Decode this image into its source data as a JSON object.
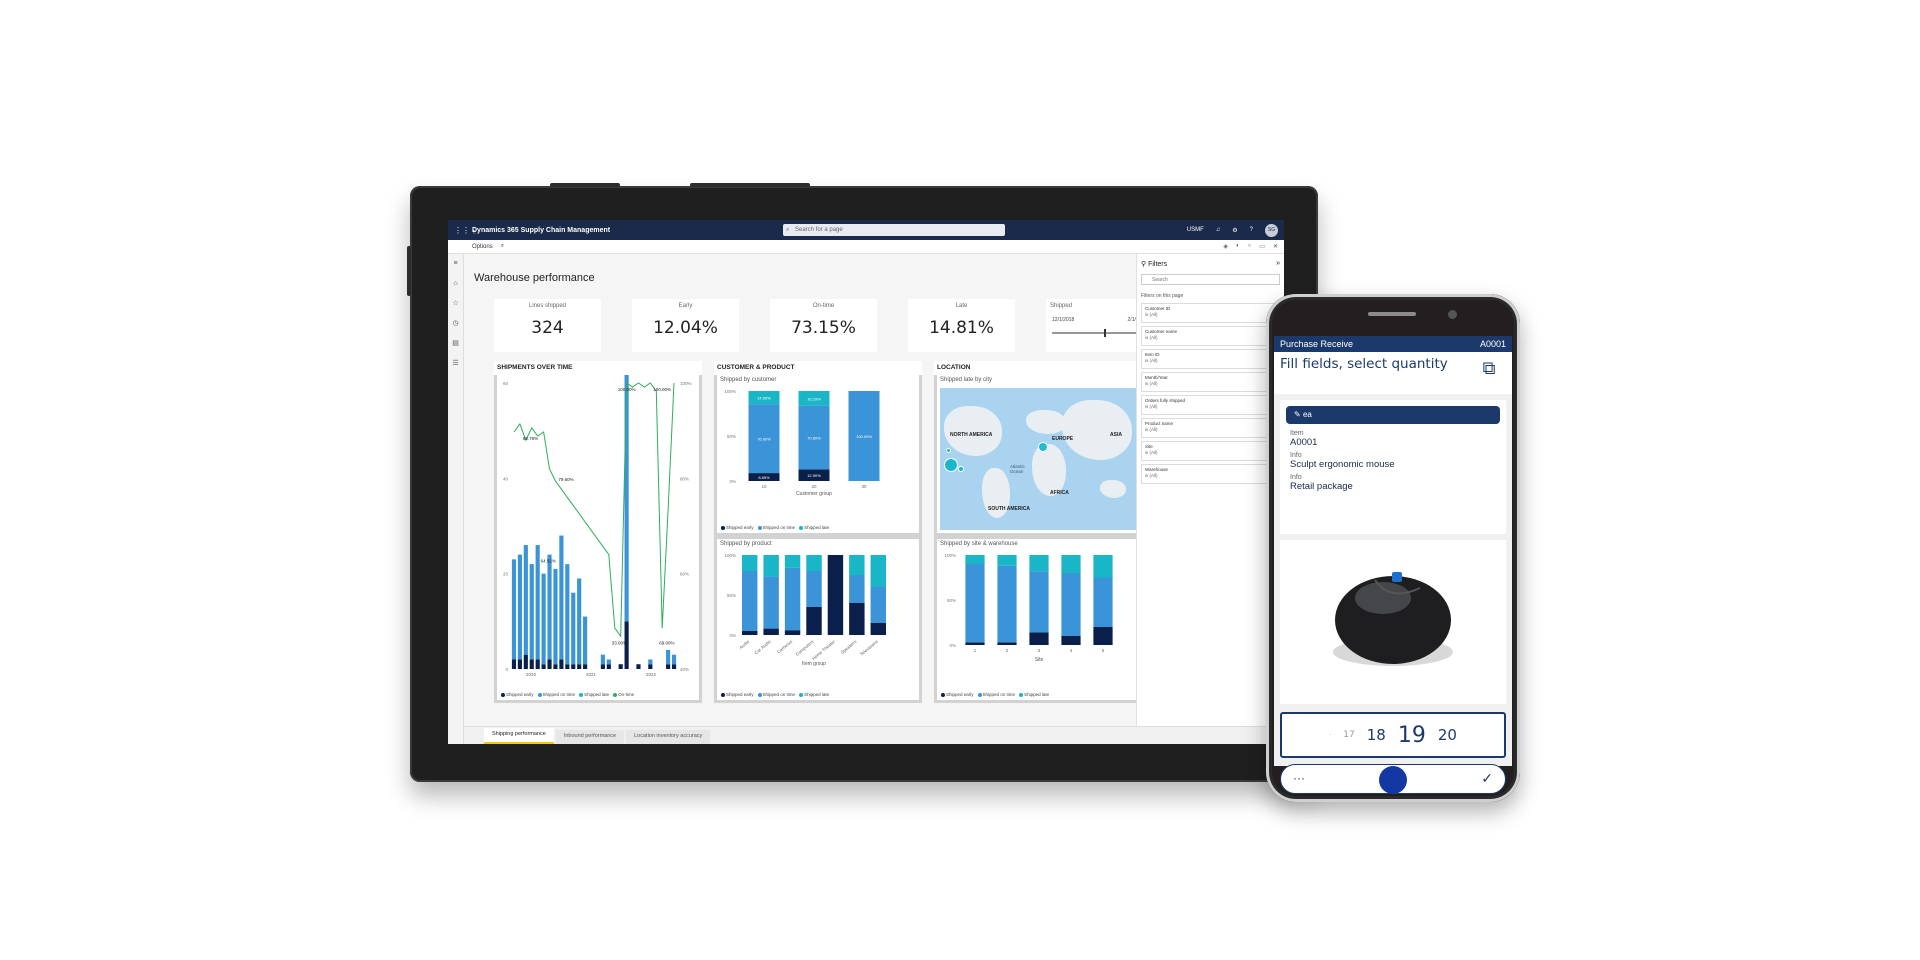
{
  "tablet": {
    "app_title": "Dynamics 365 Supply Chain Management",
    "search_placeholder": "Search for a page",
    "company": "USMF",
    "avatar_initials": "SG",
    "options_label": "Options",
    "page_title": "Warehouse performance",
    "kpis": [
      {
        "label": "Lines shipped",
        "value": "324"
      },
      {
        "label": "Early",
        "value": "12.04%"
      },
      {
        "label": "On-time",
        "value": "73.15%"
      },
      {
        "label": "Late",
        "value": "14.81%"
      }
    ],
    "shipped_slicer": {
      "label": "Shipped",
      "start": "12/1/2018",
      "end": "2/1/2022",
      "range_fraction": [
        0.55,
        1.0
      ]
    },
    "panels": {
      "shipments": {
        "title": "SHIPMENTS OVER TIME",
        "legend": [
          "Shipped early",
          "Shipped on time",
          "Shipped late",
          "On-time"
        ]
      },
      "customer_product": {
        "title": "CUSTOMER & PRODUCT",
        "by_customer_title": "Shipped by customer",
        "by_customer_xlabel": "Customer group",
        "by_product_title": "Shipped by product",
        "by_product_xlabel": "Item group",
        "legend": [
          "Shipped early",
          "Shipped on time",
          "Shipped late"
        ]
      },
      "location": {
        "title": "LOCATION",
        "map_title": "Shipped late by city",
        "map_labels": {
          "na": "NORTH AMERICA",
          "eu": "EUROPE",
          "as": "ASIA",
          "af": "AFRICA",
          "sa": "SOUTH AMERICA",
          "ocean": "Atlantic Ocean"
        },
        "site_title": "Shipped by site & warehouse",
        "site_xlabel": "Site",
        "legend": [
          "Shipped early",
          "Shipped on time",
          "Shipped late"
        ]
      }
    },
    "filters": {
      "title": "Filters",
      "search": "Search",
      "subtitle": "Filters on this page",
      "items": [
        {
          "name": "Customer ID",
          "value": "is (All)"
        },
        {
          "name": "Customer name",
          "value": "is (All)"
        },
        {
          "name": "Item ID",
          "value": "is (All)"
        },
        {
          "name": "Month/Year",
          "value": "is (All)"
        },
        {
          "name": "Orders fully shipped",
          "value": "is (All)"
        },
        {
          "name": "Product name",
          "value": "is (All)"
        },
        {
          "name": "Site",
          "value": "is (All)"
        },
        {
          "name": "Warehouse",
          "value": "is (All)"
        }
      ]
    },
    "tabs": [
      "Shipping performance",
      "Inbound performance",
      "Location inventory accuracy"
    ],
    "colors": {
      "early": "#0b1f4b",
      "on_time": "#3b93d8",
      "late": "#19b6c8",
      "line": "#2eae57"
    }
  },
  "phone": {
    "screen_title": "Purchase Receive",
    "item_code": "A0001",
    "instruction": "Fill fields, select quantity",
    "chip": "ea",
    "fields": [
      {
        "label": "Item",
        "value": "A0001"
      },
      {
        "label": "Info",
        "value": "Sculpt ergonomic mouse"
      },
      {
        "label": "Info",
        "value": "Retail package"
      }
    ],
    "quantity": {
      "prev2": "17",
      "prev": "18",
      "current": "19",
      "next": "20"
    },
    "actions": {
      "more": "···",
      "confirm": "✓"
    }
  },
  "chart_data": [
    {
      "type": "bar",
      "title": "Shipped by customer",
      "xlabel": "Customer group",
      "categories": [
        "10",
        "20",
        "30"
      ],
      "series": [
        {
          "name": "Shipped early",
          "values": [
            8.8,
            12.9,
            0
          ]
        },
        {
          "name": "Shipped on time",
          "values": [
            76.6,
            70.8,
            100
          ]
        },
        {
          "name": "Shipped late",
          "values": [
            14.6,
            16.3,
            0
          ]
        }
      ],
      "data_labels": [
        [
          "8.85%",
          "76.60%",
          "14.55%"
        ],
        [
          "12.90%",
          "70.80%",
          "16.29%"
        ],
        [
          "",
          "100.00%",
          ""
        ]
      ],
      "ylim": [
        0,
        100
      ],
      "yticks": [
        "0%",
        "50%",
        "100%"
      ]
    },
    {
      "type": "bar",
      "title": "Shipped by product",
      "xlabel": "Item group",
      "categories": [
        "Audio",
        "Car Audio",
        "Cameras",
        "Computers",
        "Home Theater",
        "Speakers",
        "Televisions"
      ],
      "series": [
        {
          "name": "Shipped early",
          "values": [
            5,
            8,
            6,
            35,
            100,
            40,
            15
          ]
        },
        {
          "name": "Shipped on time",
          "values": [
            75,
            65,
            78,
            45,
            0,
            35,
            45
          ]
        },
        {
          "name": "Shipped late",
          "values": [
            20,
            27,
            16,
            20,
            0,
            25,
            40
          ]
        }
      ],
      "ylim": [
        0,
        100
      ],
      "yticks": [
        "0%",
        "50%",
        "100%"
      ]
    },
    {
      "type": "bar",
      "title": "Shipped by site & warehouse",
      "xlabel": "Site",
      "categories": [
        "1",
        "2",
        "3",
        "4",
        "5"
      ],
      "series": [
        {
          "name": "Shipped early",
          "values": [
            3,
            3,
            14,
            10,
            20
          ]
        },
        {
          "name": "Shipped on time",
          "values": [
            87,
            85,
            68,
            70,
            55
          ]
        },
        {
          "name": "Shipped late",
          "values": [
            10,
            12,
            18,
            20,
            25
          ]
        }
      ],
      "ylim": [
        0,
        100
      ],
      "yticks": [
        "0%",
        "50%",
        "100%"
      ]
    },
    {
      "type": "bar",
      "title": "SHIPMENTS OVER TIME",
      "x_ticks": [
        "2020",
        "2021",
        "2022"
      ],
      "yticks_left": [
        "0",
        "20",
        "40",
        "60"
      ],
      "yticks_right": [
        "40%",
        "60%",
        "80%",
        "100%"
      ],
      "series": [
        {
          "name": "Shipped on time",
          "values": [
            21,
            22,
            23,
            20,
            24,
            19,
            22,
            20,
            26,
            21,
            15,
            18,
            10,
            0,
            0,
            2,
            1,
            0,
            0,
            60,
            0,
            0,
            0,
            1,
            0,
            0,
            3,
            2
          ]
        },
        {
          "name": "Shipped early",
          "values": [
            2,
            2,
            3,
            2,
            2,
            1,
            2,
            1,
            2,
            1,
            1,
            1,
            1,
            0,
            0,
            1,
            1,
            0,
            1,
            10,
            0,
            1,
            0,
            1,
            0,
            0,
            1,
            1
          ]
        }
      ],
      "line_labels": [
        "88.78%",
        "79.60%",
        "64.52%",
        "33.00%",
        "100.00%",
        "100.00%",
        "69.00%"
      ]
    }
  ]
}
